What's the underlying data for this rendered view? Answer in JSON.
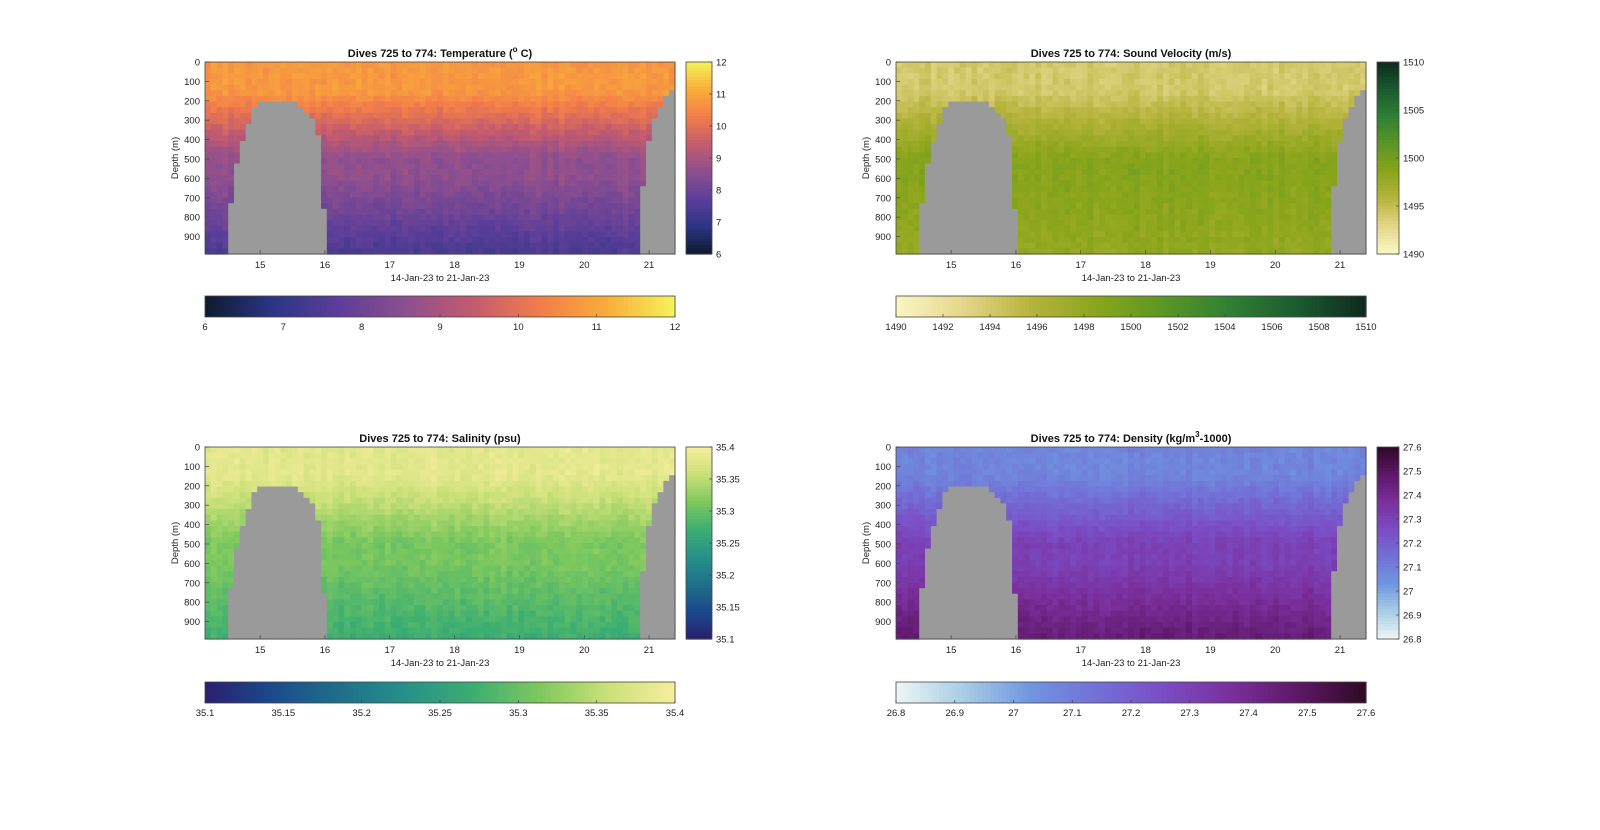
{
  "chart_data": [
    {
      "type": "heatmap",
      "title": "Dives 725 to 774: Temperature (",
      "title_sup": "o",
      "title_after": " C)",
      "xlabel": "14-Jan-23 to 21-Jan-23",
      "ylabel": "Depth (m)",
      "xlim": [
        14.15,
        21.4
      ],
      "ylim": [
        0,
        990
      ],
      "x_ticks": [
        "15",
        "16",
        "17",
        "18",
        "19",
        "20",
        "21"
      ],
      "y_ticks": [
        "0",
        "100",
        "200",
        "300",
        "400",
        "500",
        "600",
        "700",
        "800",
        "900"
      ],
      "clim": [
        6,
        12
      ],
      "colormap": [
        "#0d1b2e",
        "#2b3585",
        "#5c3e9a",
        "#8e4f8f",
        "#c45b6e",
        "#f27d4a",
        "#faad3a",
        "#f4f35a"
      ],
      "side_colorbar_ticks": [
        "6",
        "7",
        "8",
        "9",
        "10",
        "11",
        "12"
      ],
      "horiz_colorbar_ticks": [
        "6",
        "7",
        "8",
        "9",
        "10",
        "11",
        "12"
      ],
      "value_profile": {
        "surface": 10.8,
        "deep": 8.6,
        "deep_bottom": 7.4
      },
      "bathymetry_depth_m": [
        990,
        990,
        990,
        990,
        730,
        520,
        400,
        310,
        240,
        210,
        195,
        195,
        190,
        190,
        195,
        210,
        235,
        260,
        300,
        380,
        750,
        990,
        990,
        990,
        990,
        990,
        990,
        990,
        990,
        990,
        990,
        990,
        990,
        990,
        990,
        990,
        990,
        990,
        990,
        990,
        990,
        990,
        990,
        990,
        990,
        990,
        990,
        990,
        990,
        990,
        990,
        990,
        990,
        990,
        990,
        990,
        990,
        990,
        990,
        990,
        990,
        990,
        990,
        990,
        990,
        990,
        990,
        990,
        990,
        990,
        990,
        990,
        990,
        990,
        990,
        650,
        400,
        280,
        220,
        180,
        150
      ]
    },
    {
      "type": "heatmap",
      "title": "Dives 725 to 774: Sound Velocity (m/s)",
      "xlabel": "14-Jan-23 to 21-Jan-23",
      "ylabel": "Depth (m)",
      "xlim": [
        14.15,
        21.4
      ],
      "ylim": [
        0,
        990
      ],
      "x_ticks": [
        "15",
        "16",
        "17",
        "18",
        "19",
        "20",
        "21"
      ],
      "y_ticks": [
        "0",
        "100",
        "200",
        "300",
        "400",
        "500",
        "600",
        "700",
        "800",
        "900"
      ],
      "clim": [
        1490,
        1510
      ],
      "colormap": [
        "#fbf6c5",
        "#e4d78a",
        "#b7b43d",
        "#8aa51b",
        "#5b9625",
        "#2f7f34",
        "#1a5a2f",
        "#0f2a1e"
      ],
      "side_colorbar_ticks": [
        "1490",
        "1495",
        "1500",
        "1505",
        "1510"
      ],
      "horiz_colorbar_ticks": [
        "1490",
        "1492",
        "1494",
        "1496",
        "1498",
        "1500",
        "1502",
        "1504",
        "1506",
        "1508",
        "1510"
      ],
      "value_profile": {
        "surface": 1494.0,
        "deep": 1498.8,
        "deep_bottom": 1498.0
      }
    },
    {
      "type": "heatmap",
      "title": "Dives 725 to 774: Salinity (psu)",
      "xlabel": "14-Jan-23 to 21-Jan-23",
      "ylabel": "Depth (m)",
      "xlim": [
        14.15,
        21.4
      ],
      "ylim": [
        0,
        990
      ],
      "x_ticks": [
        "15",
        "16",
        "17",
        "18",
        "19",
        "20",
        "21"
      ],
      "y_ticks": [
        "0",
        "100",
        "200",
        "300",
        "400",
        "500",
        "600",
        "700",
        "800",
        "900"
      ],
      "clim": [
        35.1,
        35.4
      ],
      "colormap": [
        "#2a1f6e",
        "#1a4a8c",
        "#1f6f8b",
        "#26918a",
        "#3cae72",
        "#7fc95e",
        "#cbe079",
        "#f7ee9d"
      ],
      "side_colorbar_ticks": [
        "35.1",
        "35.15",
        "35.2",
        "35.25",
        "35.3",
        "35.35",
        "35.4"
      ],
      "horiz_colorbar_ticks": [
        "35.1",
        "35.15",
        "35.2",
        "35.25",
        "35.3",
        "35.35",
        "35.4"
      ],
      "value_profile": {
        "surface": 35.38,
        "deep": 35.31,
        "deep_bottom": 35.27
      }
    },
    {
      "type": "heatmap",
      "title": "Dives 725 to 774: Density (kg/m",
      "title_sup": "3",
      "title_after": "-1000)",
      "xlabel": "14-Jan-23 to 21-Jan-23",
      "ylabel": "Depth (m)",
      "xlim": [
        14.15,
        21.4
      ],
      "ylim": [
        0,
        990
      ],
      "x_ticks": [
        "15",
        "16",
        "17",
        "18",
        "19",
        "20",
        "21"
      ],
      "y_ticks": [
        "0",
        "100",
        "200",
        "300",
        "400",
        "500",
        "600",
        "700",
        "800",
        "900"
      ],
      "clim": [
        26.8,
        27.6
      ],
      "colormap": [
        "#eef6f5",
        "#a8cde6",
        "#6f96e0",
        "#7270d6",
        "#7b4cc4",
        "#7a2f9c",
        "#5d1766",
        "#2e0a24"
      ],
      "side_colorbar_ticks": [
        "26.8",
        "26.9",
        "27",
        "27.1",
        "27.2",
        "27.3",
        "27.4",
        "27.5",
        "27.6"
      ],
      "horiz_colorbar_ticks": [
        "26.8",
        "26.9",
        "27",
        "27.1",
        "27.2",
        "27.3",
        "27.4",
        "27.5",
        "27.6"
      ],
      "value_profile": {
        "surface": 27.08,
        "deep": 27.3,
        "deep_bottom": 27.46
      }
    }
  ]
}
